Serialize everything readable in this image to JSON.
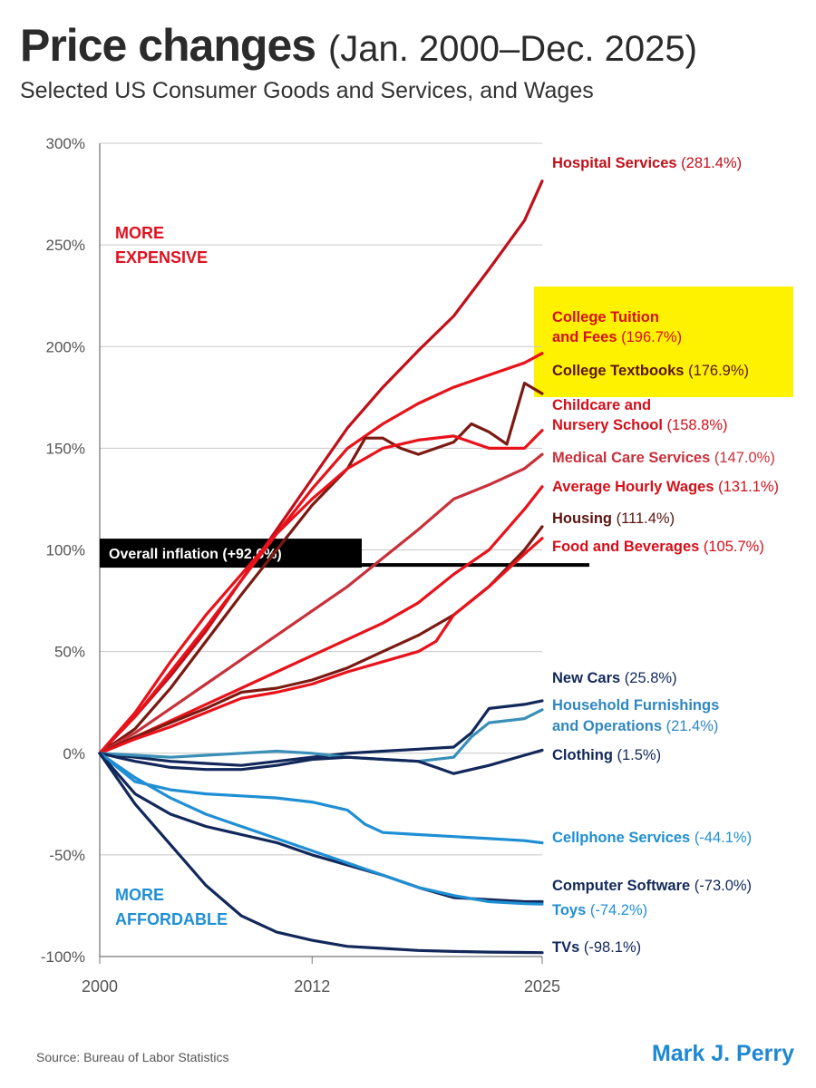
{
  "header": {
    "title_bold": "Price changes",
    "title_light": "(Jan. 2000–Dec. 2025)",
    "subtitle": "Selected US Consumer Goods and Services, and Wages"
  },
  "footer": {
    "source": "Source:  Bureau of Labor Statistics",
    "author": "Mark J. Perry"
  },
  "annotations": {
    "more_expensive_1": "MORE",
    "more_expensive_2": "EXPENSIVE",
    "more_affordable_1": "MORE",
    "more_affordable_2": "AFFORDABLE",
    "inflation": "Overall inflation (+92.6%)"
  },
  "colors": {
    "highlight": "#fff200",
    "inflation_box": "#000000"
  },
  "chart_data": {
    "type": "line",
    "title": "Price changes (Jan. 2000–Dec. 2025)",
    "subtitle": "Selected US Consumer Goods and Services, and Wages",
    "xlim": [
      2000,
      2025
    ],
    "ylim": [
      -100,
      300
    ],
    "x_ticks": [
      "2000",
      "2012",
      "2025"
    ],
    "y_ticks": [
      "300%",
      "250%",
      "200%",
      "150%",
      "100%",
      "50%",
      "0%",
      "-50%",
      "-100%"
    ],
    "inflation_reference": 92.6,
    "series": [
      {
        "name": "Hospital Services",
        "pct": "(281.4%)",
        "color": "#c0101a",
        "text_color": "#c0101a",
        "x": [
          2000,
          2002,
          2004,
          2006,
          2008,
          2010,
          2012,
          2014,
          2016,
          2018,
          2020,
          2022,
          2023,
          2024,
          2025
        ],
        "y": [
          0,
          18,
          38,
          60,
          85,
          110,
          135,
          160,
          180,
          198,
          215,
          238,
          250,
          262,
          281.4
        ]
      },
      {
        "name": "College Tuition and Fees",
        "label1": "College Tuition",
        "label2": "and Fees",
        "pct": "(196.7%)",
        "color": "#e8121a",
        "text_color": "#d4101a",
        "highlight": true,
        "x": [
          2000,
          2002,
          2004,
          2006,
          2008,
          2010,
          2012,
          2014,
          2016,
          2018,
          2020,
          2022,
          2024,
          2025
        ],
        "y": [
          0,
          18,
          40,
          62,
          85,
          108,
          130,
          150,
          162,
          172,
          180,
          186,
          192,
          196.7
        ]
      },
      {
        "name": "College Textbooks",
        "pct": "(176.9%)",
        "color": "#7a1a12",
        "text_color": "#5a1510",
        "highlight": true,
        "x": [
          2000,
          2002,
          2004,
          2006,
          2008,
          2010,
          2012,
          2014,
          2015,
          2016,
          2017,
          2018,
          2019,
          2020,
          2021,
          2022,
          2023,
          2024,
          2025
        ],
        "y": [
          0,
          12,
          32,
          55,
          78,
          100,
          122,
          140,
          155,
          155,
          150,
          147,
          150,
          153,
          162,
          158,
          152,
          182,
          176.9
        ]
      },
      {
        "name": "Childcare and Nursery School",
        "label1": "Childcare and",
        "label2": "Nursery School",
        "pct": "(158.8%)",
        "color": "#e8121a",
        "text_color": "#d4101a",
        "x": [
          2000,
          2002,
          2004,
          2006,
          2008,
          2010,
          2012,
          2014,
          2016,
          2018,
          2020,
          2022,
          2024,
          2025
        ],
        "y": [
          0,
          20,
          45,
          68,
          88,
          108,
          125,
          140,
          150,
          154,
          156,
          150,
          150,
          158.8
        ]
      },
      {
        "name": "Medical Care Services",
        "pct": "(147.0%)",
        "color": "#c8303a",
        "text_color": "#c8303a",
        "x": [
          2000,
          2002,
          2004,
          2006,
          2008,
          2010,
          2012,
          2014,
          2016,
          2018,
          2020,
          2022,
          2024,
          2025
        ],
        "y": [
          0,
          10,
          22,
          34,
          46,
          58,
          70,
          82,
          96,
          110,
          125,
          132,
          140,
          147
        ]
      },
      {
        "name": "Average Hourly Wages",
        "pct": "(131.1%)",
        "color": "#e8121a",
        "text_color": "#d4101a",
        "x": [
          2000,
          2002,
          2004,
          2006,
          2008,
          2010,
          2012,
          2014,
          2016,
          2018,
          2020,
          2022,
          2024,
          2025
        ],
        "y": [
          0,
          8,
          16,
          24,
          32,
          40,
          48,
          56,
          64,
          74,
          88,
          100,
          120,
          131.1
        ]
      },
      {
        "name": "Housing",
        "pct": "(111.4%)",
        "color": "#7a1a12",
        "text_color": "#5a1510",
        "x": [
          2000,
          2002,
          2004,
          2006,
          2008,
          2010,
          2012,
          2014,
          2016,
          2018,
          2020,
          2022,
          2024,
          2025
        ],
        "y": [
          0,
          8,
          15,
          22,
          30,
          32,
          36,
          42,
          50,
          58,
          68,
          82,
          100,
          111.4
        ]
      },
      {
        "name": "Food and Beverages",
        "pct": "(105.7%)",
        "color": "#e8121a",
        "text_color": "#d4101a",
        "x": [
          2000,
          2002,
          2004,
          2006,
          2008,
          2010,
          2012,
          2014,
          2016,
          2018,
          2019,
          2020,
          2022,
          2024,
          2025
        ],
        "y": [
          0,
          7,
          13,
          20,
          27,
          30,
          34,
          40,
          45,
          50,
          55,
          68,
          82,
          98,
          105.7
        ]
      },
      {
        "name": "New Cars",
        "pct": "(25.8%)",
        "color": "#12285a",
        "text_color": "#12285a",
        "x": [
          2000,
          2002,
          2004,
          2006,
          2008,
          2010,
          2012,
          2014,
          2016,
          2018,
          2020,
          2021,
          2022,
          2024,
          2025
        ],
        "y": [
          0,
          -2,
          -4,
          -5,
          -6,
          -4,
          -2,
          0,
          1,
          2,
          3,
          10,
          22,
          24,
          25.8
        ]
      },
      {
        "name": "Household Furnishings and Operations",
        "label1": "Household Furnishings",
        "label2": "and Operations",
        "pct": "(21.4%)",
        "color": "#3a8fb8",
        "text_color": "#2f88c0",
        "x": [
          2000,
          2002,
          2004,
          2006,
          2008,
          2010,
          2012,
          2014,
          2016,
          2018,
          2020,
          2021,
          2022,
          2024,
          2025
        ],
        "y": [
          0,
          -1,
          -2,
          -1,
          0,
          1,
          0,
          -2,
          -3,
          -4,
          -2,
          8,
          15,
          17,
          21.4
        ]
      },
      {
        "name": "Clothing",
        "pct": "(1.5%)",
        "color": "#12285a",
        "text_color": "#12285a",
        "x": [
          2000,
          2002,
          2004,
          2006,
          2008,
          2010,
          2012,
          2014,
          2016,
          2018,
          2019,
          2020,
          2022,
          2024,
          2025
        ],
        "y": [
          0,
          -4,
          -7,
          -8,
          -8,
          -6,
          -3,
          -2,
          -3,
          -4,
          -7,
          -10,
          -6,
          -1,
          1.5
        ]
      },
      {
        "name": "Cellphone Services",
        "pct": "(-44.1%)",
        "color": "#1f8fd4",
        "text_color": "#1f8fd4",
        "x": [
          2000,
          2002,
          2004,
          2006,
          2008,
          2010,
          2012,
          2014,
          2015,
          2016,
          2018,
          2020,
          2022,
          2024,
          2025
        ],
        "y": [
          0,
          -14,
          -18,
          -20,
          -21,
          -22,
          -24,
          -28,
          -35,
          -39,
          -40,
          -41,
          -42,
          -43,
          -44.1
        ]
      },
      {
        "name": "Computer Software",
        "pct": "(-73.0%)",
        "color": "#12285a",
        "text_color": "#12285a",
        "x": [
          2000,
          2002,
          2004,
          2006,
          2008,
          2010,
          2012,
          2014,
          2016,
          2018,
          2020,
          2022,
          2024,
          2025
        ],
        "y": [
          0,
          -20,
          -30,
          -36,
          -40,
          -44,
          -50,
          -55,
          -60,
          -66,
          -71,
          -72,
          -73,
          -73
        ]
      },
      {
        "name": "Toys",
        "pct": "(-74.2%)",
        "color": "#1f8fd4",
        "text_color": "#1f8fd4",
        "x": [
          2000,
          2002,
          2004,
          2006,
          2008,
          2010,
          2012,
          2014,
          2016,
          2018,
          2020,
          2022,
          2024,
          2025
        ],
        "y": [
          0,
          -12,
          -22,
          -30,
          -36,
          -42,
          -48,
          -54,
          -60,
          -66,
          -70,
          -73,
          -74,
          -74.2
        ]
      },
      {
        "name": "TVs",
        "pct": "(-98.1%)",
        "color": "#12285a",
        "text_color": "#12285a",
        "x": [
          2000,
          2002,
          2004,
          2006,
          2008,
          2010,
          2012,
          2014,
          2016,
          2018,
          2020,
          2022,
          2024,
          2025
        ],
        "y": [
          0,
          -25,
          -45,
          -65,
          -80,
          -88,
          -92,
          -95,
          -96,
          -97,
          -97.5,
          -97.8,
          -98,
          -98.1
        ]
      }
    ]
  }
}
